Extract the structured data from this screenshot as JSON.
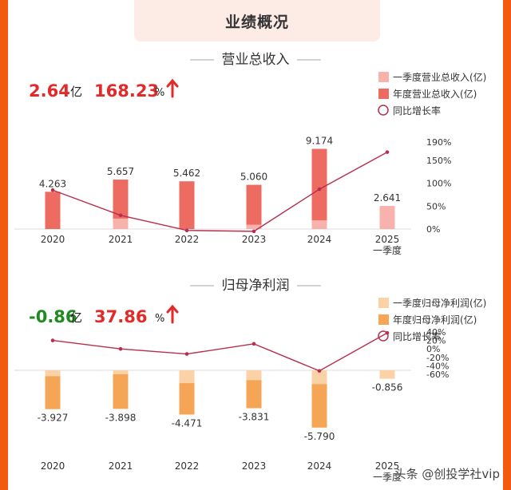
{
  "header": {
    "title": "业绩概况"
  },
  "watermark": "头条 @创投学社vip",
  "colors": {
    "q1_rev": "#f7b2ab",
    "year_rev": "#ee6b62",
    "q1_np": "#fbd1a6",
    "year_np": "#f4a556",
    "line": "#b72e4e",
    "up_arrow": "#e32a2a",
    "positive": "#e32a2a",
    "negative": "#1f8a1f"
  },
  "chart_data": [
    {
      "type": "bar",
      "title": "营业总收入",
      "summary": {
        "value": "2.64",
        "unit": "亿",
        "growth": "168.23",
        "growth_unit": "%",
        "arrow": "up-arrow"
      },
      "legend": [
        "一季度营业总收入(亿)",
        "年度营业总收入(亿)",
        "同比增长率"
      ],
      "categories": [
        "2020",
        "2021",
        "2022",
        "2023",
        "2024",
        "2025\n一季度"
      ],
      "series": [
        {
          "name": "年度营业总收入(亿)",
          "values": [
            4.263,
            5.657,
            5.462,
            5.06,
            9.174,
            null
          ],
          "labels": [
            "4.263",
            "5.657",
            "5.462",
            "5.060",
            "9.174",
            null
          ]
        },
        {
          "name": "一季度营业总收入(亿)",
          "values": [
            null,
            1.2,
            null,
            0.5,
            1.0,
            2.641
          ],
          "labels": [
            null,
            null,
            null,
            null,
            null,
            "2.641"
          ]
        },
        {
          "name": "同比增长率",
          "values": [
            85,
            30,
            -3,
            -5,
            87,
            168
          ],
          "axis": "right"
        }
      ],
      "right_axis": {
        "ticks": [
          "0%",
          "50%",
          "100%",
          "150%",
          "190%"
        ],
        "tick_values": [
          0,
          50,
          100,
          150,
          190
        ],
        "ylim": [
          0,
          190
        ]
      }
    },
    {
      "type": "bar",
      "title": "归母净利润",
      "summary": {
        "value": "-0.86",
        "unit": "亿",
        "growth": "37.86",
        "growth_unit": "%",
        "arrow": "up-arrow"
      },
      "legend": [
        "一季度归母净利润(亿)",
        "年度归母净利润(亿)",
        "同比增长率"
      ],
      "categories": [
        "2020",
        "2021",
        "2022",
        "2023",
        "2024",
        "2025\n一季度"
      ],
      "series": [
        {
          "name": "年度归母净利润(亿)",
          "values": [
            -3.927,
            -3.898,
            -4.471,
            -3.831,
            -5.79,
            null
          ],
          "labels": [
            "-3.927",
            "-3.898",
            "-4.471",
            "-3.831",
            "-5.790",
            null
          ]
        },
        {
          "name": "一季度归母净利润(亿)",
          "values": [
            -0.6,
            -0.4,
            -1.3,
            -1.0,
            -1.4,
            -0.856
          ],
          "labels": [
            null,
            null,
            null,
            null,
            null,
            "-0.856"
          ]
        },
        {
          "name": "同比增长率",
          "values": [
            20,
            0,
            -12,
            12,
            -52,
            37.86
          ],
          "axis": "right"
        }
      ],
      "right_axis": {
        "ticks": [
          "40%",
          "20%",
          "0%",
          "-20%",
          "-40%",
          "-60%"
        ],
        "tick_values": [
          40,
          20,
          0,
          -20,
          -40,
          -60
        ],
        "ylim": [
          -60,
          40
        ]
      }
    }
  ]
}
